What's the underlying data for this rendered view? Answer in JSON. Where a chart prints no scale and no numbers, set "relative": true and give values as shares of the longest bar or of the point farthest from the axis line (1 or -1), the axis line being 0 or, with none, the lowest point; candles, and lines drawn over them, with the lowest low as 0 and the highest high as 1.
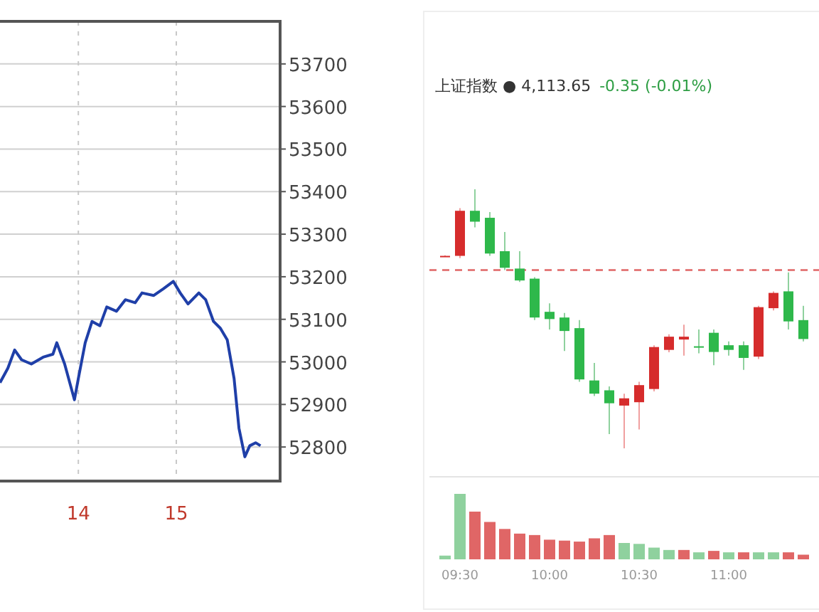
{
  "chart_data": [
    {
      "type": "line",
      "x": [
        13.2,
        13.28,
        13.35,
        13.42,
        13.52,
        13.64,
        13.74,
        13.78,
        13.86,
        13.96,
        14.0,
        14.07,
        14.14,
        14.22,
        14.29,
        14.39,
        14.48,
        14.58,
        14.65,
        14.77,
        14.87,
        14.97,
        15.04,
        15.12,
        15.23,
        15.3,
        15.38,
        15.45,
        15.52,
        15.59,
        15.64,
        15.7,
        15.75,
        15.81,
        15.86
      ],
      "series": [
        {
          "color": "#1f3fa8",
          "values": [
            52951,
            52985,
            53028,
            53005,
            52995,
            53011,
            53018,
            53045,
            52995,
            52911,
            52961,
            53045,
            53095,
            53085,
            53129,
            53119,
            53146,
            53139,
            53162,
            53156,
            53172,
            53189,
            53162,
            53136,
            53162,
            53146,
            53095,
            53079,
            53052,
            52961,
            52844,
            52777,
            52803,
            52810,
            52803
          ]
        }
      ],
      "xlim": [
        13.2,
        16.06
      ],
      "xticks": [
        14,
        15
      ],
      "ylim": [
        52720,
        53800
      ],
      "yticks": [
        52800,
        52900,
        53000,
        53100,
        53200,
        53300,
        53400,
        53500,
        53600,
        53700
      ],
      "grid": true
    },
    {
      "type": "candlestick",
      "title": "上证指数 ● 4,113.65",
      "subtitle": "-0.35 (-0.01%)",
      "relative": true,
      "categories": [
        null,
        null,
        null,
        null,
        null,
        null,
        null,
        null,
        null,
        null,
        null,
        null,
        null,
        null,
        null,
        null,
        null,
        null,
        null,
        null,
        null,
        null,
        null,
        null,
        null
      ],
      "ohlc": [
        [
          0.743,
          0.745,
          0.741,
          0.743
        ],
        [
          0.743,
          0.927,
          0.734,
          0.917
        ],
        [
          0.917,
          1.0,
          0.853,
          0.875
        ],
        [
          0.89,
          0.912,
          0.743,
          0.752
        ],
        [
          0.761,
          0.835,
          0.688,
          0.697
        ],
        [
          0.694,
          0.761,
          0.642,
          0.648
        ],
        [
          0.655,
          0.661,
          0.495,
          0.505
        ],
        [
          0.527,
          0.56,
          0.459,
          0.499
        ],
        [
          0.505,
          0.523,
          0.376,
          0.453
        ],
        [
          0.464,
          0.495,
          0.257,
          0.266
        ],
        [
          0.262,
          0.33,
          0.202,
          0.211
        ],
        [
          0.224,
          0.239,
          0.055,
          0.174
        ],
        [
          0.165,
          0.211,
          0.0,
          0.193
        ],
        [
          0.178,
          0.257,
          0.073,
          0.244
        ],
        [
          0.229,
          0.398,
          0.22,
          0.391
        ],
        [
          0.38,
          0.44,
          0.371,
          0.431
        ],
        [
          0.42,
          0.477,
          0.358,
          0.431
        ],
        [
          0.394,
          0.459,
          0.367,
          0.389
        ],
        [
          0.446,
          0.459,
          0.321,
          0.372
        ],
        [
          0.398,
          0.413,
          0.358,
          0.38
        ],
        [
          0.398,
          0.413,
          0.303,
          0.349
        ],
        [
          0.354,
          0.55,
          0.345,
          0.545
        ],
        [
          0.541,
          0.606,
          0.532,
          0.6
        ],
        [
          0.606,
          0.679,
          0.459,
          0.49
        ],
        [
          0.495,
          0.55,
          0.413,
          0.422
        ]
      ],
      "ref_lines": [
        {
          "axis": "y",
          "value": 0.688,
          "color": "#e06666",
          "line_style": "dashed"
        }
      ]
    },
    {
      "type": "bar",
      "relative": true,
      "categories": [
        null,
        "09:30",
        null,
        null,
        null,
        null,
        null,
        "10:00",
        null,
        null,
        null,
        null,
        null,
        "10:30",
        null,
        null,
        null,
        null,
        null,
        "11:00",
        null,
        null,
        null,
        null,
        null
      ],
      "values": [
        0.057,
        1,
        0.729,
        0.571,
        0.464,
        0.393,
        0.371,
        0.3,
        0.286,
        0.271,
        0.321,
        0.371,
        0.25,
        0.236,
        0.179,
        0.143,
        0.143,
        0.107,
        0.129,
        0.107,
        0.107,
        0.107,
        0.107,
        0.107,
        0.071
      ],
      "colors": [
        "#8fd19e",
        "#8fd19e",
        "#e06666",
        "#e06666",
        "#e06666",
        "#e06666",
        "#e06666",
        "#e06666",
        "#e06666",
        "#e06666",
        "#e06666",
        "#e06666",
        "#8fd19e",
        "#8fd19e",
        "#8fd19e",
        "#8fd19e",
        "#e06666",
        "#8fd19e",
        "#e06666",
        "#8fd19e",
        "#e06666",
        "#8fd19e",
        "#8fd19e",
        "#e06666",
        "#e06666"
      ]
    }
  ]
}
